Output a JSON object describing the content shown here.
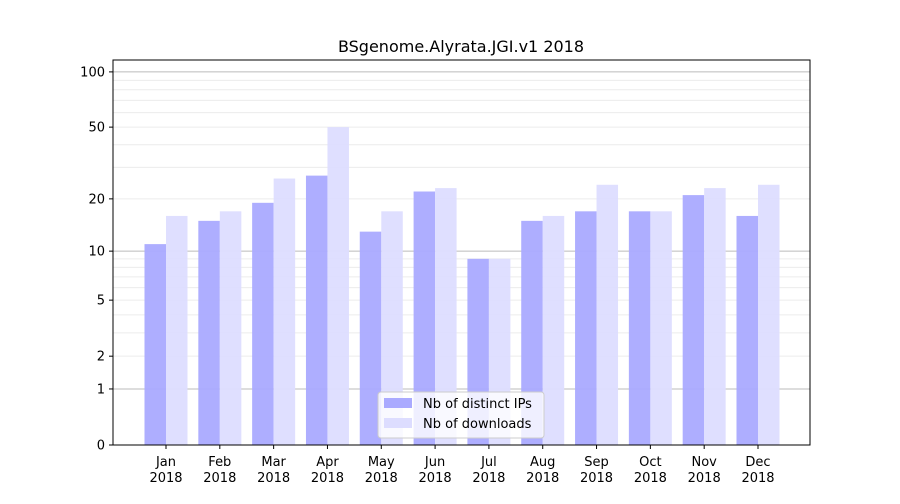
{
  "chart_data": {
    "type": "bar",
    "title": "BSgenome.Alyrata.JGI.v1 2018",
    "xlabel": "",
    "ylabel": "",
    "y_scale": "log10(1+y)",
    "ylim": [
      0,
      116
    ],
    "yticks": [
      0,
      1,
      2,
      5,
      10,
      20,
      50,
      100
    ],
    "grid": true,
    "legend_position": "bottom-center",
    "categories": [
      "Jan\n2018",
      "Feb\n2018",
      "Mar\n2018",
      "Apr\n2018",
      "May\n2018",
      "Jun\n2018",
      "Jul\n2018",
      "Aug\n2018",
      "Sep\n2018",
      "Oct\n2018",
      "Nov\n2018",
      "Dec\n2018"
    ],
    "series": [
      {
        "name": "Nb of distinct IPs",
        "color": "#aaaaff",
        "values": [
          11,
          15,
          19,
          27,
          13,
          22,
          9,
          15,
          17,
          17,
          21,
          16
        ]
      },
      {
        "name": "Nb of downloads",
        "color": "#ddddff",
        "values": [
          16,
          17,
          26,
          50,
          17,
          23,
          9,
          16,
          24,
          17,
          23,
          24
        ]
      }
    ]
  }
}
